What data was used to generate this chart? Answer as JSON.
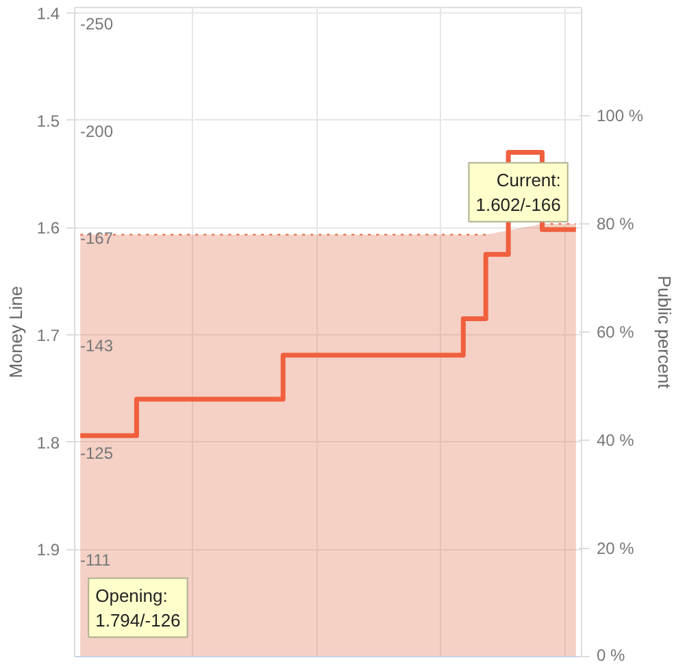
{
  "chart_data": {
    "type": "step",
    "ylabel": "Money Line",
    "y2label": "Public percent",
    "categories": [
      null,
      null,
      null,
      null,
      null,
      null,
      null,
      null,
      null,
      null,
      null,
      null,
      null,
      null,
      null,
      null,
      null,
      null,
      null,
      null,
      null,
      null,
      null,
      null,
      null,
      null,
      null,
      null,
      null,
      null,
      null,
      null,
      null,
      null,
      null,
      null,
      null,
      null,
      null,
      null,
      null,
      null,
      null,
      null,
      null
    ],
    "ylim": [
      2.0,
      1.395
    ],
    "yticks": [
      1.4,
      1.5,
      1.6,
      1.7,
      1.8,
      1.9
    ],
    "y2lim": [
      0,
      120
    ],
    "y2ticks": [
      {
        "value": 0,
        "label": "0 %"
      },
      {
        "value": 20,
        "label": "20 %"
      },
      {
        "value": 40,
        "label": "40 %"
      },
      {
        "value": 60,
        "label": "60 %"
      },
      {
        "value": 80,
        "label": "80 %"
      },
      {
        "value": 100,
        "label": "100 %"
      }
    ],
    "series": [
      {
        "type": "area",
        "axis": "y2",
        "color": "#e0785a",
        "line_style": "dotted",
        "values": [
          78,
          78,
          78,
          78,
          78,
          78,
          78,
          78,
          78,
          78,
          78,
          78,
          78,
          78,
          78,
          78,
          78,
          78,
          78,
          78,
          78,
          78,
          78,
          78,
          78,
          78,
          78,
          78,
          78,
          78,
          78,
          78,
          78,
          78,
          78,
          78,
          78,
          null,
          null,
          null,
          null,
          80,
          80,
          80,
          80
        ]
      },
      {
        "color": "#f0603f",
        "values": [
          1.794,
          1.794,
          1.794,
          1.794,
          1.794,
          1.76,
          1.76,
          1.76,
          1.76,
          1.76,
          1.76,
          1.76,
          1.76,
          1.76,
          1.76,
          1.76,
          1.76,
          1.76,
          1.719,
          1.719,
          1.719,
          1.719,
          1.719,
          1.719,
          1.719,
          1.719,
          1.719,
          1.719,
          1.719,
          1.719,
          1.719,
          1.719,
          1.719,
          1.719,
          1.685,
          1.685,
          1.625,
          1.625,
          1.53,
          1.53,
          1.53,
          1.602,
          1.602,
          1.602,
          1.602
        ]
      }
    ],
    "annotations": [
      "Opening:\n1.794/-126",
      "Current:\n1.602/-166",
      "-250",
      "-200",
      "-167",
      "-143",
      "-125",
      "-111"
    ],
    "grid": true
  }
}
